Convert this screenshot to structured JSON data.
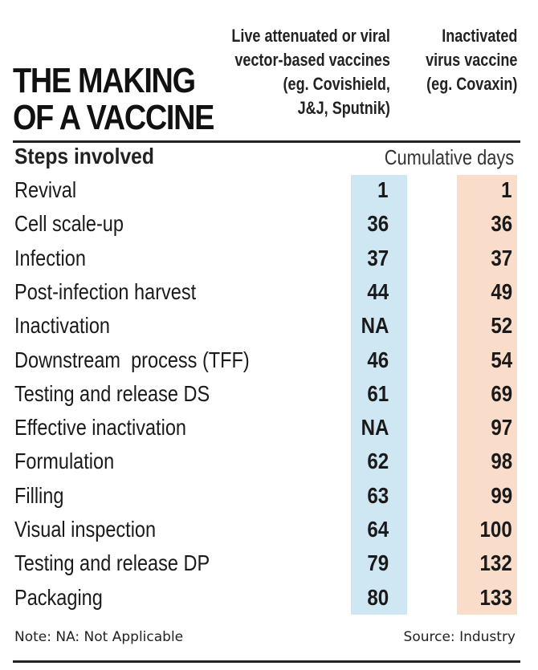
{
  "chart_data": {
    "type": "table",
    "title": "THE MAKING\nOF A VACCINE",
    "columns": [
      {
        "key": "live",
        "label": "Live attenuated or viral\nvector-based vaccines\n(eg. Covishield,\nJ&J, Sputnik)",
        "color": "#cfe6f3"
      },
      {
        "key": "inactivated",
        "label": "Inactivated\nvirus vaccine\n(eg. Covaxin)",
        "color": "#f9dcc9"
      }
    ],
    "header_steps": "Steps involved",
    "header_values": "Cumulative days",
    "rows": [
      {
        "step": "Revival",
        "live": "1",
        "inactivated": "1"
      },
      {
        "step": "Cell scale-up",
        "live": "36",
        "inactivated": "36"
      },
      {
        "step": "Infection",
        "live": "37",
        "inactivated": "37"
      },
      {
        "step": "Post-infection harvest",
        "live": "44",
        "inactivated": "49"
      },
      {
        "step": "Inactivation",
        "live": "NA",
        "inactivated": "52"
      },
      {
        "step": "Downstream  process (TFF)",
        "live": "46",
        "inactivated": "54"
      },
      {
        "step": "Testing and release DS",
        "live": "61",
        "inactivated": "69"
      },
      {
        "step": "Effective inactivation",
        "live": "NA",
        "inactivated": "97"
      },
      {
        "step": "Formulation",
        "live": "62",
        "inactivated": "98"
      },
      {
        "step": "Filling",
        "live": "63",
        "inactivated": "99"
      },
      {
        "step": "Visual inspection",
        "live": "64",
        "inactivated": "100"
      },
      {
        "step": "Testing and release DP",
        "live": "79",
        "inactivated": "132"
      },
      {
        "step": "Packaging",
        "live": "80",
        "inactivated": "133"
      }
    ],
    "note": "Note: NA: Not Applicable",
    "source": "Source: Industry"
  }
}
